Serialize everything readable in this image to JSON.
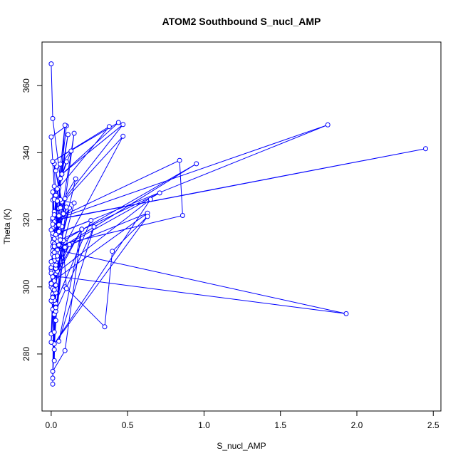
{
  "chart_data": {
    "type": "line",
    "title": "ATOM2 Southbound S_nucl_AMP",
    "xlabel": "S_nucl_AMP",
    "ylabel": "Theta (K)",
    "xlim": [
      -0.06,
      2.55
    ],
    "ylim": [
      263,
      373
    ],
    "xticks": [
      0.0,
      0.5,
      1.0,
      1.5,
      2.0,
      2.5
    ],
    "xtick_labels": [
      "0.0",
      "0.5",
      "1.0",
      "1.5",
      "2.0",
      "2.5"
    ],
    "yticks": [
      280,
      300,
      320,
      340,
      360
    ],
    "ytick_labels": [
      "280",
      "300",
      "320",
      "340",
      "360"
    ],
    "grid": false,
    "legend": "none",
    "series": [
      {
        "color": "#0000ff",
        "marker": "open-circle",
        "points": [
          [
            0.0,
            366.5
          ],
          [
            0.01,
            350.2
          ],
          [
            0.06,
            332.3
          ],
          [
            0.1,
            348.0
          ],
          [
            0.0,
            344.7
          ],
          [
            0.04,
            314.8
          ],
          [
            0.02,
            336.7
          ],
          [
            0.08,
            321.8
          ],
          [
            0.15,
            345.8
          ],
          [
            0.03,
            311.4
          ],
          [
            0.09,
            348.2
          ],
          [
            0.02,
            318.3
          ],
          [
            0.11,
            345.4
          ],
          [
            0.05,
            329.5
          ],
          [
            0.38,
            347.8
          ],
          [
            0.01,
            337.4
          ],
          [
            0.44,
            349.0
          ],
          [
            0.07,
            333.6
          ],
          [
            0.47,
            348.4
          ],
          [
            0.02,
            322.4
          ],
          [
            0.47,
            344.9
          ],
          [
            0.04,
            308.3
          ],
          [
            0.06,
            336.6
          ],
          [
            0.1,
            337.3
          ],
          [
            0.01,
            325.9
          ],
          [
            0.13,
            340.5
          ],
          [
            0.03,
            334.6
          ],
          [
            0.07,
            325.4
          ],
          [
            0.16,
            332.2
          ],
          [
            0.03,
            307.3
          ],
          [
            0.12,
            323.5
          ],
          [
            0.01,
            315.3
          ],
          [
            1.81,
            348.3
          ],
          [
            0.02,
            320.0
          ],
          [
            2.45,
            341.2
          ],
          [
            0.01,
            319.8
          ],
          [
            0.84,
            337.7
          ],
          [
            0.86,
            321.3
          ],
          [
            0.01,
            312.0
          ],
          [
            0.95,
            336.7
          ],
          [
            0.02,
            310.5
          ],
          [
            0.71,
            328.0
          ],
          [
            0.04,
            313.6
          ],
          [
            0.05,
            323.4
          ],
          [
            0.02,
            326.1
          ],
          [
            0.15,
            325.0
          ],
          [
            0.01,
            300.5
          ],
          [
            0.09,
            326.3
          ],
          [
            0.03,
            316.0
          ],
          [
            0.1,
            323.8
          ],
          [
            0.01,
            293.3
          ],
          [
            0.26,
            319.8
          ],
          [
            0.05,
            316.2
          ],
          [
            0.02,
            291.8
          ],
          [
            0.28,
            317.9
          ],
          [
            0.05,
            283.8
          ],
          [
            0.2,
            317.2
          ],
          [
            0.02,
            302.0
          ],
          [
            0.63,
            322.0
          ],
          [
            0.04,
            311.0
          ],
          [
            1.93,
            292.0
          ],
          [
            0.01,
            303.3
          ],
          [
            0.65,
            326.1
          ],
          [
            0.02,
            283.0
          ],
          [
            0.63,
            321.0
          ],
          [
            0.4,
            310.6
          ],
          [
            0.35,
            288.1
          ],
          [
            0.09,
            300.0
          ],
          [
            0.1,
            299.5
          ],
          [
            0.07,
            318.0
          ],
          [
            0.01,
            274.8
          ],
          [
            0.09,
            281.0
          ],
          [
            0.2,
            317.2
          ],
          [
            0.03,
            304.0
          ],
          [
            0.12,
            312.6
          ],
          [
            0.03,
            306.0
          ],
          [
            0.01,
            271.0
          ],
          [
            0.02,
            318.1
          ],
          [
            0.01,
            304.5
          ],
          [
            0.03,
            327.3
          ],
          [
            0.0,
            301.2
          ],
          [
            0.06,
            323.6
          ],
          [
            0.0,
            286.0
          ],
          [
            0.01,
            297.9
          ],
          [
            0.04,
            304.7
          ],
          [
            0.01,
            295.5
          ],
          [
            0.0,
            305.3
          ],
          [
            0.02,
            308.7
          ],
          [
            0.01,
            320.4
          ],
          [
            0.01,
            328.3
          ],
          [
            0.02,
            312.0
          ],
          [
            0.03,
            295.0
          ],
          [
            0.03,
            292.7
          ],
          [
            0.09,
            311.8
          ],
          [
            0.01,
            316.1
          ],
          [
            0.06,
            315.0
          ],
          [
            0.0,
            305.8
          ],
          [
            0.02,
            300.2
          ],
          [
            0.01,
            307.1
          ],
          [
            0.05,
            321.2
          ],
          [
            0.02,
            314.3
          ],
          [
            0.03,
            298.2
          ],
          [
            0.01,
            317.5
          ],
          [
            0.06,
            326.0
          ],
          [
            0.01,
            310.7
          ],
          [
            0.02,
            330.0
          ],
          [
            0.01,
            309.7
          ],
          [
            0.03,
            310.1
          ],
          [
            0.04,
            325.6
          ],
          [
            0.01,
            313.3
          ],
          [
            0.03,
            312.2
          ],
          [
            0.02,
            319.4
          ],
          [
            0.0,
            300.0
          ],
          [
            0.05,
            312.5
          ],
          [
            0.02,
            302.3
          ],
          [
            0.02,
            281.3
          ],
          [
            0.03,
            290.0
          ],
          [
            0.09,
            313.4
          ],
          [
            0.01,
            299.5
          ],
          [
            0.02,
            312.8
          ],
          [
            0.0,
            283.5
          ],
          [
            0.04,
            315.9
          ],
          [
            0.02,
            278.0
          ],
          [
            0.02,
            296.0
          ],
          [
            0.01,
            316.0
          ],
          [
            0.03,
            294.0
          ],
          [
            0.01,
            272.8
          ],
          [
            0.02,
            309.0
          ],
          [
            0.03,
            300.5
          ],
          [
            0.01,
            297.0
          ],
          [
            0.08,
            313.8
          ],
          [
            0.02,
            286.5
          ],
          [
            0.0,
            317.0
          ],
          [
            0.06,
            314.0
          ],
          [
            0.01,
            301.3
          ],
          [
            0.02,
            307.8
          ],
          [
            0.04,
            329.2
          ],
          [
            0.01,
            318.7
          ],
          [
            0.03,
            293.8
          ],
          [
            0.02,
            312.1
          ],
          [
            0.0,
            295.9
          ],
          [
            0.05,
            316.5
          ],
          [
            0.01,
            306.8
          ],
          [
            0.02,
            301.8
          ],
          [
            0.01,
            320.5
          ],
          [
            0.03,
            305.5
          ],
          [
            0.0,
            307.5
          ],
          [
            0.04,
            309.2
          ],
          [
            0.02,
            299.1
          ],
          [
            0.01,
            296.8
          ],
          [
            0.03,
            315.6
          ],
          [
            0.0,
            304.1
          ],
          [
            0.02,
            321.5
          ],
          [
            0.01,
            303.0
          ],
          [
            0.05,
            318.5
          ],
          [
            0.02,
            310.3
          ],
          [
            0.0,
            301.0
          ],
          [
            0.03,
            306.5
          ]
        ]
      }
    ]
  }
}
